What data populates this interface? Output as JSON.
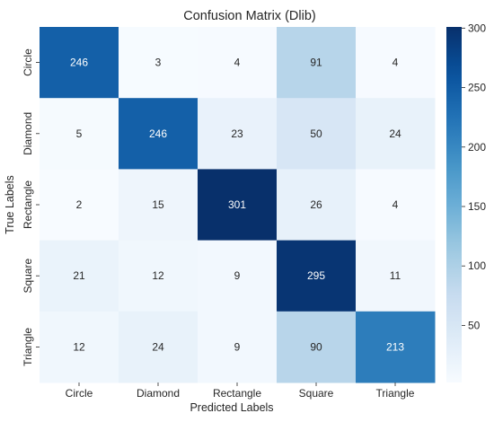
{
  "chart_data": {
    "type": "heatmap",
    "title": "Confusion Matrix (Dlib)",
    "xlabel": "Predicted Labels",
    "ylabel": "True Labels",
    "x_categories": [
      "Circle",
      "Diamond",
      "Rectangle",
      "Square",
      "Triangle"
    ],
    "y_categories": [
      "Circle",
      "Diamond",
      "Rectangle",
      "Square",
      "Triangle"
    ],
    "values": [
      [
        246,
        3,
        4,
        91,
        4
      ],
      [
        5,
        246,
        23,
        50,
        24
      ],
      [
        2,
        15,
        301,
        26,
        4
      ],
      [
        21,
        12,
        9,
        295,
        11
      ],
      [
        12,
        24,
        9,
        90,
        213
      ]
    ],
    "colormap": "Blues",
    "color_range": [
      2,
      301
    ],
    "colorbar_ticks": [
      50,
      100,
      150,
      200,
      250,
      300
    ],
    "annotations": true,
    "grid": false
  }
}
